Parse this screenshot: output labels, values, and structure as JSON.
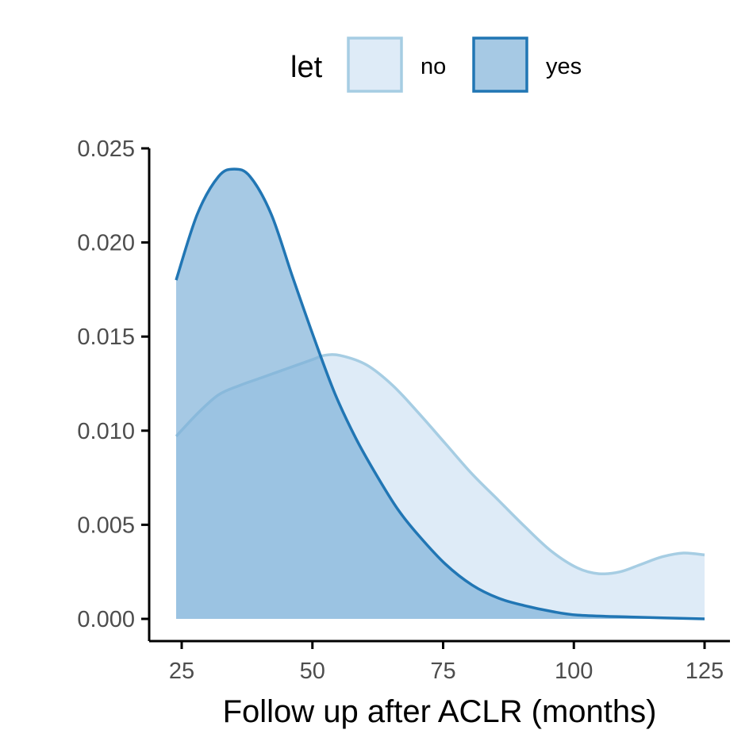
{
  "chart_data": {
    "type": "area",
    "xlabel": "Follow up after ACLR (months)",
    "ylabel": "",
    "xlim": [
      20,
      125
    ],
    "ylim": [
      0,
      0.025
    ],
    "x_ticks": [
      25,
      50,
      75,
      100,
      125
    ],
    "y_ticks": [
      0.0,
      0.005,
      0.01,
      0.015,
      0.02,
      0.025
    ],
    "x_tick_labels": [
      "25",
      "50",
      "75",
      "100",
      "125"
    ],
    "y_tick_labels": [
      "0.000",
      "0.005",
      "0.010",
      "0.015",
      "0.020",
      "0.025"
    ],
    "legend": {
      "title": "let",
      "position": "top"
    },
    "grid": false,
    "series": [
      {
        "name": "no",
        "fill": "#deebf7",
        "fill_opacity": 1,
        "stroke": "#a6cde3",
        "points": [
          [
            24,
            0.0097
          ],
          [
            28,
            0.0109
          ],
          [
            32,
            0.0119
          ],
          [
            36,
            0.0124
          ],
          [
            40,
            0.0128
          ],
          [
            45,
            0.0133
          ],
          [
            50,
            0.0138
          ],
          [
            52,
            0.014
          ],
          [
            55,
            0.014
          ],
          [
            60,
            0.0135
          ],
          [
            65,
            0.0124
          ],
          [
            70,
            0.0109
          ],
          [
            75,
            0.0093
          ],
          [
            80,
            0.0077
          ],
          [
            85,
            0.0063
          ],
          [
            90,
            0.0049
          ],
          [
            95,
            0.0036
          ],
          [
            100,
            0.0027
          ],
          [
            104,
            0.0024
          ],
          [
            108,
            0.0025
          ],
          [
            112,
            0.0029
          ],
          [
            116,
            0.0033
          ],
          [
            120,
            0.0035
          ],
          [
            124,
            0.0034
          ]
        ]
      },
      {
        "name": "yes",
        "fill": "#7cb0d7",
        "fill_opacity": 0.68,
        "stroke": "#2176b4",
        "points": [
          [
            24,
            0.018
          ],
          [
            28,
            0.0215
          ],
          [
            32,
            0.0235
          ],
          [
            35,
            0.0239
          ],
          [
            38,
            0.0235
          ],
          [
            42,
            0.0215
          ],
          [
            46,
            0.0182
          ],
          [
            50,
            0.015
          ],
          [
            54,
            0.012
          ],
          [
            58,
            0.0096
          ],
          [
            62,
            0.0076
          ],
          [
            66,
            0.0058
          ],
          [
            70,
            0.0044
          ],
          [
            75,
            0.0029
          ],
          [
            80,
            0.0018
          ],
          [
            85,
            0.0011
          ],
          [
            90,
            0.0007
          ],
          [
            95,
            0.0004
          ],
          [
            100,
            0.0002
          ],
          [
            110,
            0.0001
          ],
          [
            124,
            0.0
          ]
        ]
      }
    ]
  }
}
